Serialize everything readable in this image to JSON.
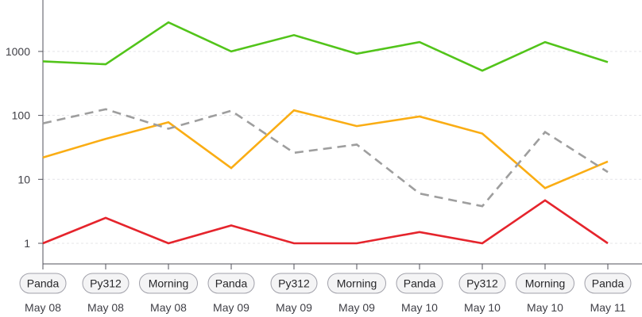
{
  "chart_data": {
    "type": "line",
    "yscale": "log",
    "ylim": [
      0.7,
      3500
    ],
    "yticks": [
      1,
      10,
      100,
      1000
    ],
    "ytick_labels": [
      "1",
      "10",
      "100",
      "1000"
    ],
    "grid": "horizontal-dotted",
    "categories": [
      {
        "tag": "Panda",
        "date": "May 08"
      },
      {
        "tag": "Py312",
        "date": "May 08"
      },
      {
        "tag": "Morning",
        "date": "May 08"
      },
      {
        "tag": "Panda",
        "date": "May 09"
      },
      {
        "tag": "Py312",
        "date": "May 09"
      },
      {
        "tag": "Morning",
        "date": "May 09"
      },
      {
        "tag": "Panda",
        "date": "May 10"
      },
      {
        "tag": "Py312",
        "date": "May 10"
      },
      {
        "tag": "Morning",
        "date": "May 10"
      },
      {
        "tag": "Panda",
        "date": "May 11"
      }
    ],
    "series": [
      {
        "name": "green",
        "color": "#52c41a",
        "dashed": false,
        "values": [
          700,
          630,
          2850,
          1000,
          1800,
          920,
          1400,
          500,
          1400,
          680
        ]
      },
      {
        "name": "orange",
        "color": "#faad14",
        "dashed": false,
        "values": [
          22,
          43,
          78,
          15,
          120,
          68,
          96,
          52,
          7.3,
          19
        ]
      },
      {
        "name": "gray-dashed",
        "color": "#9e9e9e",
        "dashed": true,
        "values": [
          75,
          125,
          62,
          118,
          26,
          35,
          6,
          3.8,
          55,
          13
        ]
      },
      {
        "name": "red",
        "color": "#e5242c",
        "dashed": false,
        "values": [
          1,
          2.5,
          1,
          1.9,
          1,
          1,
          1.5,
          1,
          4.7,
          1
        ]
      }
    ]
  }
}
